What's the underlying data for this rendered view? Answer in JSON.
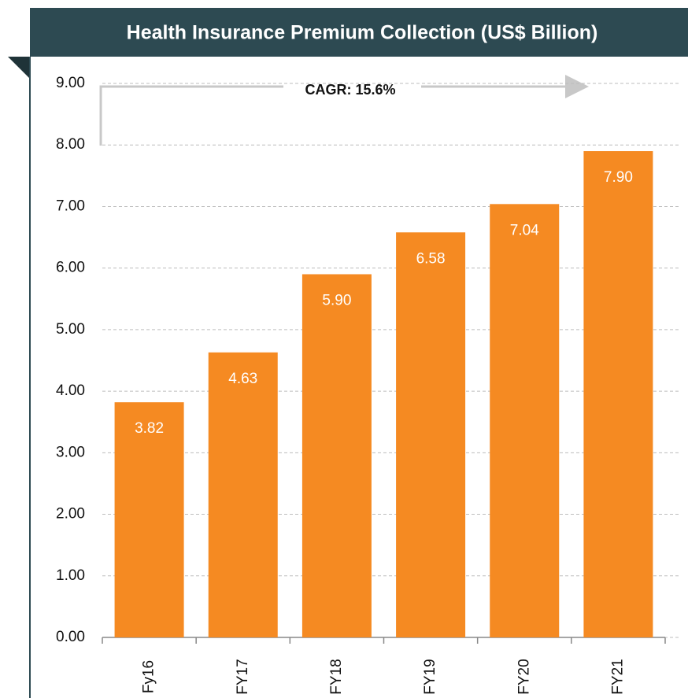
{
  "chart_data": {
    "type": "bar",
    "title": "Health Insurance Premium Collection (US$ Billion)",
    "annotation": "CAGR: 15.6%",
    "categories": [
      "Fy16",
      "FY17",
      "FY18",
      "FY19",
      "FY20",
      "FY21"
    ],
    "values": [
      3.82,
      4.63,
      5.9,
      6.58,
      7.04,
      7.9
    ],
    "value_labels": [
      "3.82",
      "4.63",
      "5.90",
      "6.58",
      "7.04",
      "7.90"
    ],
    "color": "#f58a22",
    "ylim": [
      0,
      9
    ],
    "yticks": [
      {
        "value": 0,
        "label": "0.00"
      },
      {
        "value": 1,
        "label": "1.00"
      },
      {
        "value": 2,
        "label": "2.00"
      },
      {
        "value": 3,
        "label": "3.00"
      },
      {
        "value": 4,
        "label": "4.00"
      },
      {
        "value": 5,
        "label": "5.00"
      },
      {
        "value": 6,
        "label": "6.00"
      },
      {
        "value": 7,
        "label": "7.00"
      },
      {
        "value": 8,
        "label": "8.00"
      },
      {
        "value": 9,
        "label": "9.00"
      }
    ],
    "grid": true
  }
}
